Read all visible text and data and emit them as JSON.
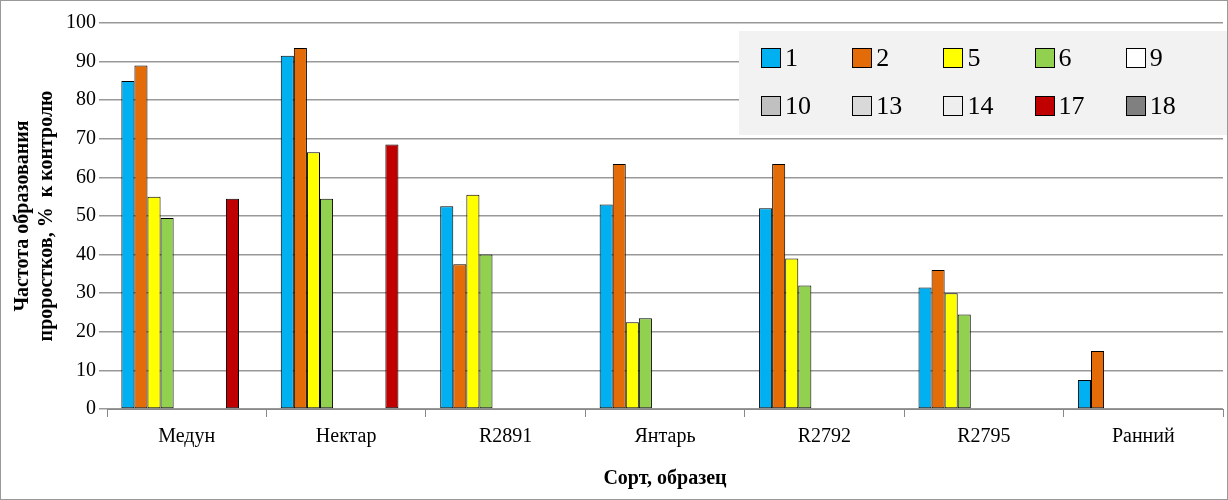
{
  "chart_data": {
    "type": "bar",
    "xlabel": "Сорт, образец",
    "ylabel": "Частота образования\nпроростков, %  к контролю",
    "categories": [
      "Медун",
      "Нектар",
      "R2891",
      "Янтарь",
      "R2792",
      "R2795",
      "Ранний"
    ],
    "series": [
      {
        "name": "1",
        "color": "#00b0f0",
        "values": [
          85,
          91.5,
          52.5,
          53,
          52,
          31.5,
          7.5
        ]
      },
      {
        "name": "2",
        "color": "#e36c09",
        "values": [
          89,
          93.5,
          37.5,
          63.5,
          63.5,
          36,
          15
        ]
      },
      {
        "name": "5",
        "color": "#ffff00",
        "values": [
          55,
          66.5,
          55.5,
          22.5,
          39,
          30,
          null
        ]
      },
      {
        "name": "6",
        "color": "#92d050",
        "values": [
          49.5,
          54.5,
          40,
          23.5,
          32,
          24.5,
          null
        ]
      },
      {
        "name": "9",
        "color": "#ffffff",
        "values": [
          null,
          null,
          null,
          null,
          null,
          null,
          null
        ]
      },
      {
        "name": "10",
        "color": "#c0c0c0",
        "values": [
          null,
          null,
          null,
          null,
          null,
          null,
          null
        ]
      },
      {
        "name": "13",
        "color": "#d9d9d9",
        "values": [
          null,
          null,
          null,
          null,
          null,
          null,
          null
        ]
      },
      {
        "name": "14",
        "color": "#eeeeee",
        "values": [
          null,
          null,
          null,
          null,
          null,
          null,
          null
        ]
      },
      {
        "name": "17",
        "color": "#c00000",
        "values": [
          54.5,
          68.5,
          null,
          null,
          null,
          null,
          null
        ]
      },
      {
        "name": "18",
        "color": "#808080",
        "values": [
          null,
          null,
          null,
          null,
          null,
          null,
          null
        ]
      }
    ],
    "ylim": [
      0,
      100
    ],
    "yticks": [
      0,
      10,
      20,
      30,
      40,
      50,
      60,
      70,
      80,
      90,
      100
    ],
    "grid": "y",
    "legend": "top right"
  }
}
